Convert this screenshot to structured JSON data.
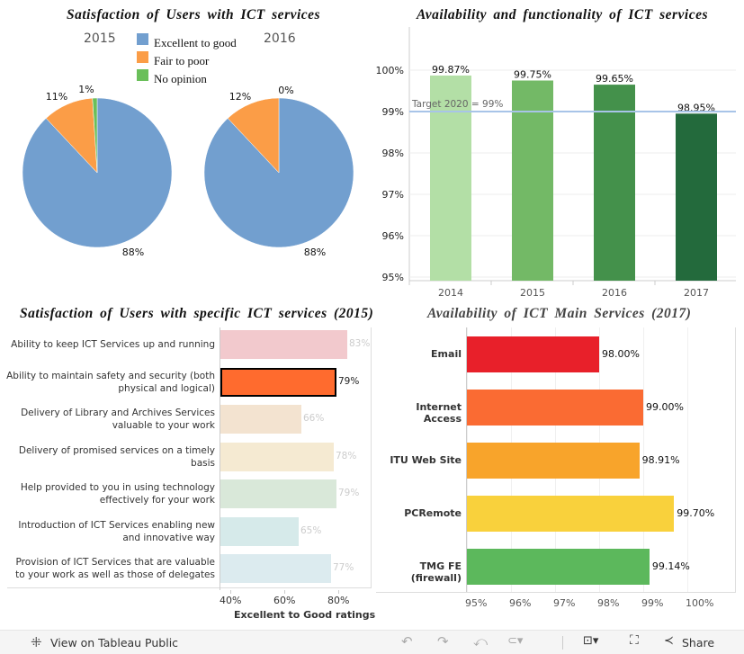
{
  "pies": {
    "title": "Satisfaction of Users with ICT services",
    "legend": [
      {
        "label": "Excellent to good",
        "color": "#729fcf"
      },
      {
        "label": "Fair to poor",
        "color": "#fb9d47"
      },
      {
        "label": "No opinion",
        "color": "#6abf5a"
      }
    ],
    "charts": [
      {
        "year": "2015",
        "values": [
          88,
          11,
          1
        ],
        "labels": [
          "88%",
          "11%",
          "1%"
        ]
      },
      {
        "year": "2016",
        "values": [
          88,
          12,
          0
        ],
        "labels": [
          "88%",
          "12%",
          "0%"
        ]
      }
    ]
  },
  "chart_data": [
    {
      "type": "bar",
      "title": "Availability and functionality of ICT services",
      "categories": [
        "2014",
        "2015",
        "2016",
        "2017"
      ],
      "values": [
        99.87,
        99.75,
        99.65,
        98.95
      ],
      "data_labels": [
        "99.87%",
        "99.75%",
        "99.65%",
        "98.95%"
      ],
      "ylim": [
        95,
        100
      ],
      "yticks": [
        "95%",
        "96%",
        "97%",
        "98%",
        "99%",
        "100%"
      ],
      "colors": [
        "#b3dfa6",
        "#73b966",
        "#44914b",
        "#236a3c"
      ],
      "reference_line": {
        "value": 99,
        "label": "Target 2020 = 99%",
        "color": "#a8c4e8"
      }
    },
    {
      "type": "bar",
      "orientation": "horizontal",
      "title": "Satisfaction of Users with specific ICT services (2015)",
      "xlabel": "Excellent to Good ratings",
      "xticks": [
        "40%",
        "60%",
        "80%"
      ],
      "categories": [
        "Ability to keep ICT Services up and running",
        "Ability to maintain safety and security (both physical and logical)",
        "Delivery of Library and Archives Services valuable to your work",
        "Delivery of promised services on a timely basis",
        "Help provided to you in using technology effectively for your work",
        "Introduction of ICT Services enabling new and innovative way",
        "Provision of ICT Services that are valuable to your work as well as those of delegates"
      ],
      "values": [
        83,
        79,
        66,
        78,
        79,
        65,
        77
      ],
      "data_labels": [
        "83%",
        "79%",
        "66%",
        "78%",
        "79%",
        "65%",
        "77%"
      ],
      "colors": [
        "#f2c9cd",
        "#ff6b2e",
        "#f3e3d0",
        "#f5ead2",
        "#d9e8d9",
        "#d6eaea",
        "#dcebef"
      ],
      "highlighted": "Ability to maintain safety and security (both physical and logical)"
    },
    {
      "type": "bar",
      "orientation": "horizontal",
      "title": "Availability of ICT Main Services (2017)",
      "categories": [
        "Email",
        "Internet Access",
        "ITU Web Site",
        "PCRemote",
        "TMG FE (firewall)"
      ],
      "values": [
        98.0,
        99.0,
        98.91,
        99.7,
        99.14
      ],
      "data_labels": [
        "98.00%",
        "99.00%",
        "98.91%",
        "99.70%",
        "99.14%"
      ],
      "xlim": [
        95,
        100
      ],
      "xticks": [
        "95%",
        "96%",
        "97%",
        "98%",
        "99%",
        "100%"
      ],
      "colors": [
        "#e8202a",
        "#fa6b33",
        "#f8a42b",
        "#f9d13c",
        "#5cb85c"
      ]
    }
  ],
  "footer": {
    "view_label": "View on Tableau Public",
    "share_label": "Share"
  }
}
